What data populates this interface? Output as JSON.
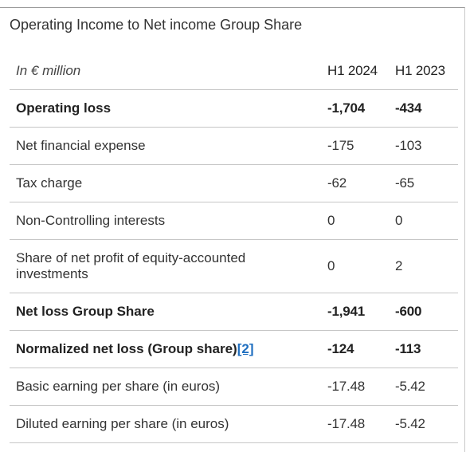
{
  "title": "Operating Income to Net income Group Share",
  "table": {
    "header": {
      "label": "In € million",
      "col1": "H1 2024",
      "col2": "H1 2023"
    },
    "rows": [
      {
        "label": "Operating loss",
        "h1_2024": "-1,704",
        "h1_2023": "-434"
      },
      {
        "label": "Net financial expense",
        "h1_2024": "-175",
        "h1_2023": "-103"
      },
      {
        "label": "Tax charge",
        "h1_2024": "-62",
        "h1_2023": "-65"
      },
      {
        "label": "Non-Controlling interests",
        "h1_2024": "0",
        "h1_2023": "0"
      },
      {
        "label": "Share of net profit of equity-accounted investments",
        "h1_2024": "0",
        "h1_2023": "2"
      },
      {
        "label": "Net loss Group Share",
        "h1_2024": "-1,941",
        "h1_2023": "-600"
      },
      {
        "label": "Normalized net loss (Group share)",
        "footnote": "[2]",
        "h1_2024": "-124",
        "h1_2023": "-113"
      },
      {
        "label": "Basic earning per share (in euros)",
        "h1_2024": "-17.48",
        "h1_2023": "-5.42"
      },
      {
        "label": "Diluted earning per share (in euros)",
        "h1_2024": "-17.48",
        "h1_2023": "-5.42"
      }
    ]
  }
}
